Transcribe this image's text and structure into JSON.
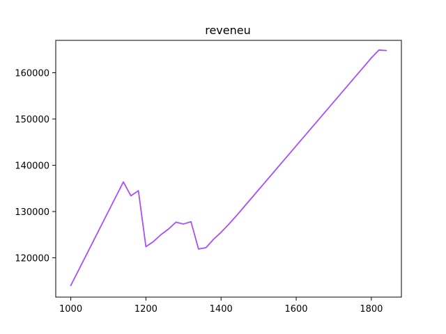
{
  "chart_data": {
    "type": "line",
    "title": "reveneu",
    "xlabel": "",
    "ylabel": "",
    "xlim": [
      960,
      1880
    ],
    "ylim": [
      111500,
      167000
    ],
    "xticks": [
      1000,
      1200,
      1400,
      1600,
      1800
    ],
    "yticks": [
      120000,
      130000,
      140000,
      150000,
      160000
    ],
    "grid": false,
    "legend": "none",
    "series": [
      {
        "color": "#a64dff",
        "x": [
          1000,
          1020,
          1040,
          1060,
          1080,
          1100,
          1120,
          1140,
          1160,
          1180,
          1200,
          1220,
          1240,
          1260,
          1280,
          1300,
          1320,
          1340,
          1360,
          1380,
          1400,
          1420,
          1440,
          1460,
          1480,
          1500,
          1520,
          1540,
          1560,
          1580,
          1600,
          1620,
          1640,
          1660,
          1680,
          1700,
          1720,
          1740,
          1760,
          1780,
          1800,
          1820,
          1840
        ],
        "y": [
          114000,
          117200,
          120400,
          123600,
          126800,
          130000,
          133200,
          136400,
          133400,
          134500,
          122400,
          123500,
          125000,
          126200,
          127700,
          127300,
          127800,
          121900,
          122200,
          124000,
          125500,
          127200,
          129000,
          130900,
          132800,
          134700,
          136600,
          138500,
          140400,
          142300,
          144200,
          146100,
          148000,
          149900,
          151800,
          153700,
          155600,
          157500,
          159400,
          161300,
          163200,
          164900,
          164800
        ]
      }
    ]
  }
}
